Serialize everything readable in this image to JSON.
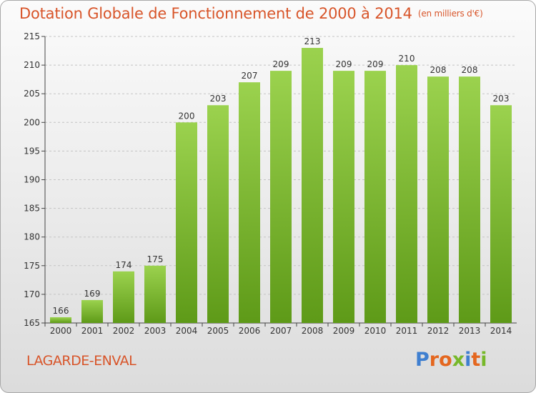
{
  "header": {
    "title": "Dotation Globale de Fonctionnement de 2000 à 2014",
    "unit": "(en milliers d'€)"
  },
  "footer": {
    "town": "LAGARDE-ENVAL",
    "brand": "Proxiti"
  },
  "colors": {
    "title": "#d8552a",
    "bar_top": "#9bd24e",
    "bar_bottom": "#5e9a18",
    "brand": [
      "#3f7fd0",
      "#e4671f",
      "#e4671f",
      "#77b82a",
      "#3f7fd0",
      "#e4671f",
      "#77b82a"
    ]
  },
  "chart_data": {
    "type": "bar",
    "categories": [
      "2000",
      "2001",
      "2002",
      "2003",
      "2004",
      "2005",
      "2006",
      "2007",
      "2008",
      "2009",
      "2010",
      "2011",
      "2012",
      "2013",
      "2014"
    ],
    "values": [
      166,
      169,
      174,
      175,
      200,
      203,
      207,
      209,
      213,
      209,
      209,
      210,
      208,
      208,
      203
    ],
    "ylim": [
      165,
      215
    ],
    "yticks": [
      165,
      170,
      175,
      180,
      185,
      190,
      195,
      200,
      205,
      210,
      215
    ],
    "grid": true,
    "data_labels": true
  }
}
